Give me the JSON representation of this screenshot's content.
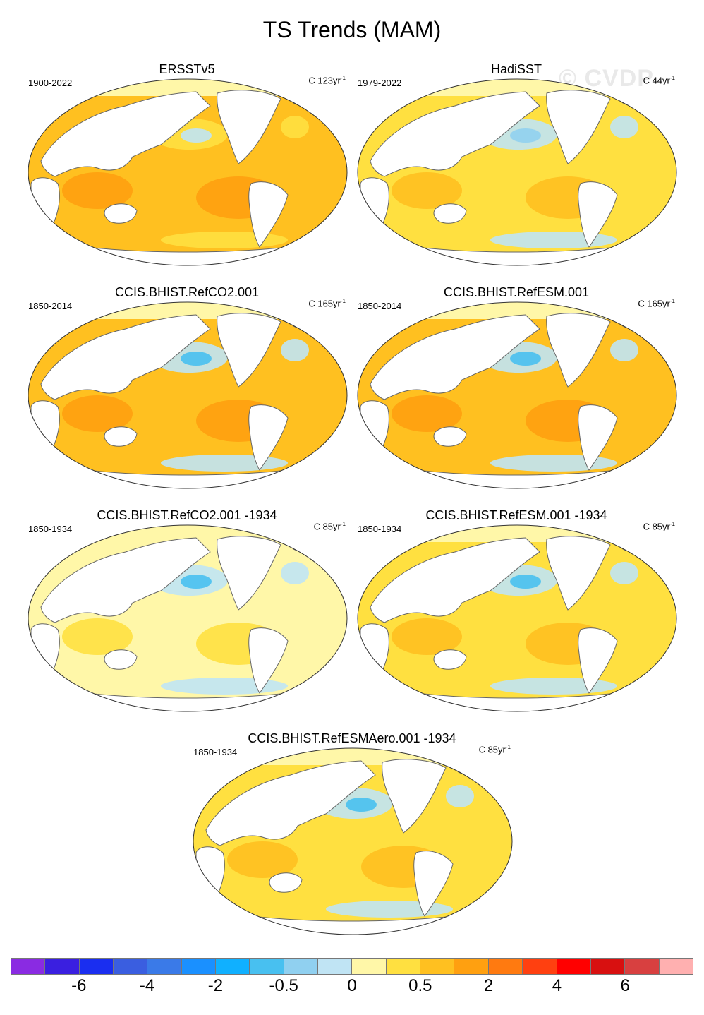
{
  "title": "TS Trends (MAM)",
  "watermark": "© CVDP",
  "colorbar": {
    "colors": [
      "#8a2be2",
      "#3a1fe0",
      "#1a2ef0",
      "#3a5ee0",
      "#3a7ae8",
      "#1a90ff",
      "#10b0ff",
      "#48c0f0",
      "#90d0f0",
      "#c0e4f4",
      "#fff7a8",
      "#ffe040",
      "#ffc020",
      "#ffa010",
      "#ff7a10",
      "#ff4010",
      "#ff0000",
      "#d81010",
      "#d84040",
      "#ffb0b0"
    ],
    "labels": [
      "-6",
      "-4",
      "-2",
      "-0.5",
      "0",
      "0.5",
      "2",
      "4",
      "6"
    ]
  },
  "panels": [
    {
      "title": "ERSSTv5",
      "period": "1900-2022",
      "units": "C 123yr",
      "units_exp": "-1",
      "scheme": "warm"
    },
    {
      "title": "HadiSST",
      "period": "1979-2022",
      "units": "C 44yr",
      "units_exp": "-1",
      "scheme": "mixed"
    },
    {
      "title": "CCIS.BHIST.RefCO2.001",
      "period": "1850-2014",
      "units": "C 165yr",
      "units_exp": "-1",
      "scheme": "warm2"
    },
    {
      "title": "CCIS.BHIST.RefESM.001",
      "period": "1850-2014",
      "units": "C 165yr",
      "units_exp": "-1",
      "scheme": "warm2"
    },
    {
      "title": "CCIS.BHIST.RefCO2.001 -1934",
      "period": "1850-1934",
      "units": "C 85yr",
      "units_exp": "-1",
      "scheme": "cool"
    },
    {
      "title": "CCIS.BHIST.RefESM.001 -1934",
      "period": "1850-1934",
      "units": "C 85yr",
      "units_exp": "-1",
      "scheme": "light"
    },
    {
      "title": "CCIS.BHIST.RefESMAero.001 -1934",
      "period": "1850-1934",
      "units": "C 85yr",
      "units_exp": "-1",
      "scheme": "light"
    }
  ]
}
